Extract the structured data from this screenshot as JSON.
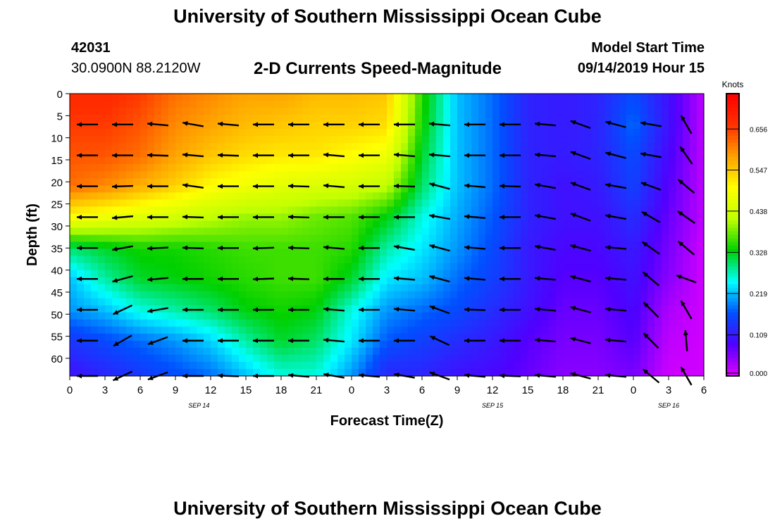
{
  "header": {
    "title_top": "University of Southern Mississippi Ocean Cube",
    "station_id": "42031",
    "station_position": "30.0900N 88.2120W",
    "chart_title": "2-D Currents Speed-Magnitude",
    "model_start_label": "Model Start Time",
    "model_start_value": "09/14/2019 Hour 15",
    "title_bottom": "University of Southern Mississippi Ocean Cube"
  },
  "chart_data": {
    "type": "heatmap",
    "title": "2-D Currents Speed-Magnitude",
    "xlabel": "Forecast Time(Z)",
    "ylabel": "Depth (ft)",
    "x_tick_labels": [
      "0",
      "3",
      "6",
      "9",
      "12",
      "15",
      "18",
      "21",
      "0",
      "3",
      "6",
      "9",
      "12",
      "15",
      "18",
      "21",
      "0",
      "3",
      "6"
    ],
    "x_range_hours": [
      0,
      54
    ],
    "date_labels": [
      {
        "hour": 11,
        "label": "SEP 14"
      },
      {
        "hour": 36,
        "label": "SEP 15"
      },
      {
        "hour": 51,
        "label": "SEP 16"
      }
    ],
    "y_ticks": [
      0,
      5,
      10,
      15,
      20,
      25,
      30,
      35,
      40,
      45,
      50,
      55,
      60
    ],
    "y_range": [
      0,
      64
    ],
    "y_inverted": true,
    "colorbar": {
      "title": "Knots",
      "tick_labels": [
        "0.656",
        "0.547",
        "0.438",
        "0.328",
        "0.219",
        "0.109",
        "0.000"
      ],
      "tick_values": [
        0.656,
        0.547,
        0.438,
        0.328,
        0.219,
        0.109,
        0.0
      ],
      "range": [
        0,
        0.75
      ],
      "colors": [
        "#e000ff",
        "#5000ff",
        "#0050ff",
        "#00ffff",
        "#00d000",
        "#c0ff00",
        "#ffff00",
        "#ffa000",
        "#ff3000",
        "#ff0000"
      ]
    },
    "speed_grid": {
      "x_hours": [
        0,
        3,
        6,
        9,
        12,
        15,
        18,
        21,
        24,
        27,
        30,
        33,
        36,
        39,
        42,
        45,
        48,
        51,
        54
      ],
      "depths_ft": [
        0,
        7,
        14,
        21,
        28,
        35,
        42,
        49,
        56,
        64
      ],
      "values": [
        [
          0.68,
          0.68,
          0.66,
          0.62,
          0.6,
          0.58,
          0.58,
          0.56,
          0.56,
          0.55,
          0.35,
          0.22,
          0.18,
          0.12,
          0.11,
          0.12,
          0.16,
          0.1,
          0.02
        ],
        [
          0.66,
          0.66,
          0.64,
          0.6,
          0.58,
          0.56,
          0.55,
          0.54,
          0.54,
          0.53,
          0.34,
          0.22,
          0.18,
          0.12,
          0.11,
          0.12,
          0.18,
          0.1,
          0.02
        ],
        [
          0.64,
          0.64,
          0.62,
          0.58,
          0.55,
          0.53,
          0.52,
          0.52,
          0.5,
          0.48,
          0.32,
          0.22,
          0.18,
          0.12,
          0.11,
          0.12,
          0.16,
          0.09,
          0.02
        ],
        [
          0.62,
          0.6,
          0.57,
          0.54,
          0.5,
          0.48,
          0.46,
          0.45,
          0.44,
          0.42,
          0.3,
          0.22,
          0.18,
          0.12,
          0.1,
          0.11,
          0.15,
          0.08,
          0.02
        ],
        [
          0.5,
          0.48,
          0.46,
          0.44,
          0.42,
          0.4,
          0.4,
          0.38,
          0.37,
          0.33,
          0.26,
          0.21,
          0.17,
          0.12,
          0.1,
          0.1,
          0.13,
          0.07,
          0.02
        ],
        [
          0.3,
          0.32,
          0.34,
          0.34,
          0.35,
          0.36,
          0.36,
          0.36,
          0.35,
          0.28,
          0.24,
          0.2,
          0.16,
          0.11,
          0.09,
          0.09,
          0.11,
          0.06,
          0.01
        ],
        [
          0.22,
          0.28,
          0.32,
          0.33,
          0.34,
          0.35,
          0.36,
          0.36,
          0.32,
          0.24,
          0.22,
          0.18,
          0.15,
          0.11,
          0.08,
          0.08,
          0.1,
          0.05,
          0.01
        ],
        [
          0.2,
          0.22,
          0.26,
          0.28,
          0.3,
          0.33,
          0.34,
          0.33,
          0.26,
          0.2,
          0.18,
          0.16,
          0.13,
          0.1,
          0.07,
          0.07,
          0.09,
          0.03,
          0.01
        ],
        [
          0.14,
          0.16,
          0.18,
          0.2,
          0.23,
          0.28,
          0.32,
          0.3,
          0.24,
          0.17,
          0.15,
          0.13,
          0.11,
          0.08,
          0.06,
          0.06,
          0.08,
          0.02,
          0.01
        ],
        [
          0.1,
          0.12,
          0.14,
          0.16,
          0.18,
          0.22,
          0.26,
          0.26,
          0.2,
          0.12,
          0.12,
          0.1,
          0.09,
          0.07,
          0.05,
          0.05,
          0.06,
          0.01,
          0.01
        ]
      ]
    },
    "vectors": {
      "x_hours": [
        1.5,
        4.5,
        7.5,
        10.5,
        13.5,
        16.5,
        19.5,
        22.5,
        25.5,
        28.5,
        31.5,
        34.5,
        37.5,
        40.5,
        43.5,
        46.5,
        49.5,
        52.5
      ],
      "depths_ft": [
        7,
        14,
        21,
        28,
        35,
        42,
        49,
        56,
        64
      ],
      "angles_deg": [
        [
          180,
          180,
          175,
          170,
          175,
          180,
          180,
          180,
          180,
          180,
          175,
          180,
          180,
          175,
          160,
          165,
          170,
          120
        ],
        [
          180,
          180,
          178,
          175,
          178,
          180,
          180,
          175,
          180,
          175,
          175,
          180,
          180,
          175,
          160,
          165,
          170,
          125
        ],
        [
          180,
          182,
          180,
          172,
          180,
          180,
          178,
          175,
          180,
          178,
          165,
          175,
          178,
          170,
          160,
          170,
          160,
          140
        ],
        [
          180,
          185,
          180,
          178,
          180,
          180,
          178,
          180,
          180,
          180,
          170,
          175,
          180,
          170,
          160,
          170,
          150,
          145
        ],
        [
          180,
          190,
          183,
          178,
          180,
          182,
          178,
          175,
          180,
          170,
          165,
          175,
          180,
          170,
          165,
          175,
          145,
          140
        ],
        [
          180,
          195,
          185,
          180,
          180,
          182,
          178,
          180,
          180,
          175,
          165,
          175,
          180,
          175,
          165,
          175,
          140,
          160
        ],
        [
          180,
          205,
          190,
          180,
          180,
          180,
          180,
          175,
          180,
          175,
          160,
          178,
          180,
          175,
          165,
          175,
          135,
          120
        ],
        [
          180,
          210,
          200,
          180,
          180,
          180,
          180,
          175,
          180,
          180,
          155,
          180,
          180,
          175,
          165,
          175,
          135,
          95
        ],
        [
          180,
          205,
          200,
          180,
          178,
          180,
          175,
          170,
          175,
          170,
          160,
          175,
          178,
          175,
          165,
          175,
          140,
          120
        ]
      ]
    }
  }
}
